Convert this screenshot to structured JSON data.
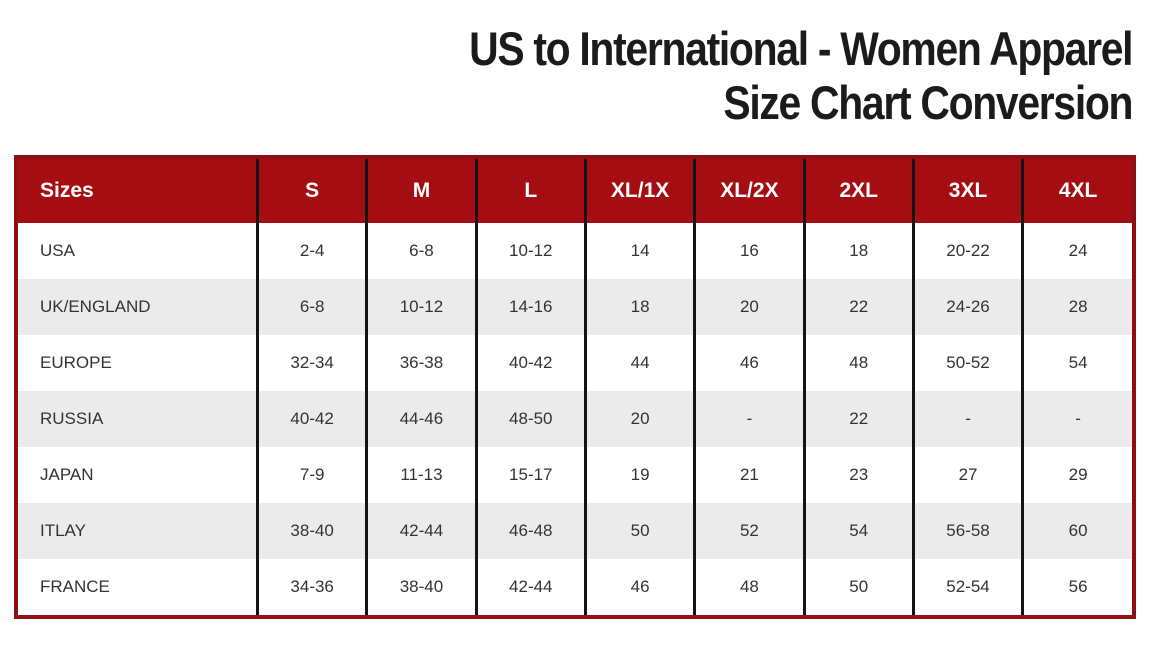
{
  "title": {
    "line1": "US to International - Women Apparel",
    "line2": "Size Chart Conversion"
  },
  "chart_data": {
    "type": "table",
    "title": "US to International - Women Apparel Size Chart Conversion",
    "columns": [
      "Sizes",
      "S",
      "M",
      "L",
      "XL/1X",
      "XL/2X",
      "2XL",
      "3XL",
      "4XL"
    ],
    "rows": [
      {
        "label": "USA",
        "values": [
          "2-4",
          "6-8",
          "10-12",
          "14",
          "16",
          "18",
          "20-22",
          "24"
        ]
      },
      {
        "label": "UK/ENGLAND",
        "values": [
          "6-8",
          "10-12",
          "14-16",
          "18",
          "20",
          "22",
          "24-26",
          "28"
        ]
      },
      {
        "label": "EUROPE",
        "values": [
          "32-34",
          "36-38",
          "40-42",
          "44",
          "46",
          "48",
          "50-52",
          "54"
        ]
      },
      {
        "label": "RUSSIA",
        "values": [
          "40-42",
          "44-46",
          "48-50",
          "20",
          "-",
          "22",
          "-",
          "-"
        ]
      },
      {
        "label": "JAPAN",
        "values": [
          "7-9",
          "11-13",
          "15-17",
          "19",
          "21",
          "23",
          "27",
          "29"
        ]
      },
      {
        "label": "ITLAY",
        "values": [
          "38-40",
          "42-44",
          "46-48",
          "50",
          "52",
          "54",
          "56-58",
          "60"
        ]
      },
      {
        "label": "FRANCE",
        "values": [
          "34-36",
          "38-40",
          "42-44",
          "46",
          "48",
          "50",
          "52-54",
          "56"
        ]
      }
    ],
    "layout": {
      "grid": "off",
      "row_striping": "alternating white / light-gray",
      "header_position": "top"
    },
    "colors": {
      "header_bg": "#A40E13",
      "outer_border": "#8E1014",
      "alt_row_bg": "#EBEBEB",
      "column_divider": "#141414",
      "header_text": "#FFFFFF",
      "body_text": "#333333",
      "title_text": "#1B1B1B"
    }
  }
}
